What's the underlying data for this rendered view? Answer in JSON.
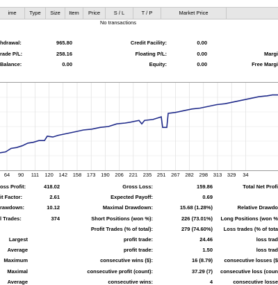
{
  "header": {
    "columns": [
      "ime",
      "Type",
      "Size",
      "Item",
      "Price",
      "S / L",
      "T / P",
      "Market Price"
    ]
  },
  "transactions": {
    "empty_text": "No transactions"
  },
  "summary_top": [
    {
      "label": "hdrawal:",
      "value": "965.80",
      "label2": "Credit Facility:",
      "value2": "0.00",
      "label3": ""
    },
    {
      "label": "rade P/L:",
      "value": "258.16",
      "label2": "Floating P/L:",
      "value2": "0.00",
      "label3": "Margi"
    },
    {
      "label": "Balance:",
      "value": "0.00",
      "label2": "Equity:",
      "value2": "0.00",
      "label3": "Free Margi"
    }
  ],
  "chart_data": {
    "type": "line",
    "x_ticks": [
      "64",
      "90",
      "111",
      "120",
      "142",
      "158",
      "173",
      "190",
      "206",
      "221",
      "235",
      "251",
      "267",
      "282",
      "298",
      "313",
      "329",
      "34"
    ],
    "series": [
      {
        "values": [
          [
            0,
            6.0
          ],
          [
            0.02,
            6.1
          ],
          [
            0.04,
            6.5
          ],
          [
            0.06,
            6.6
          ],
          [
            0.08,
            6.8
          ],
          [
            0.1,
            7.1
          ],
          [
            0.12,
            7.2
          ],
          [
            0.14,
            7.4
          ],
          [
            0.16,
            7.4
          ],
          [
            0.17,
            7.9
          ],
          [
            0.19,
            7.8
          ],
          [
            0.21,
            8.0
          ],
          [
            0.24,
            8.2
          ],
          [
            0.27,
            8.4
          ],
          [
            0.3,
            8.6
          ],
          [
            0.33,
            8.7
          ],
          [
            0.36,
            8.9
          ],
          [
            0.39,
            9.0
          ],
          [
            0.42,
            9.3
          ],
          [
            0.45,
            9.4
          ],
          [
            0.47,
            9.5
          ],
          [
            0.5,
            9.7
          ],
          [
            0.51,
            9.3
          ],
          [
            0.52,
            9.7
          ],
          [
            0.55,
            9.8
          ],
          [
            0.57,
            10.0
          ],
          [
            0.58,
            10.1
          ],
          [
            0.585,
            8.9
          ],
          [
            0.6,
            8.9
          ],
          [
            0.605,
            10.5
          ],
          [
            0.63,
            10.6
          ],
          [
            0.66,
            10.8
          ],
          [
            0.69,
            11.0
          ],
          [
            0.72,
            11.1
          ],
          [
            0.75,
            11.3
          ],
          [
            0.78,
            11.5
          ],
          [
            0.81,
            11.6
          ],
          [
            0.84,
            11.8
          ],
          [
            0.87,
            12.0
          ],
          [
            0.9,
            12.2
          ],
          [
            0.93,
            12.4
          ],
          [
            0.96,
            12.5
          ],
          [
            0.98,
            12.6
          ],
          [
            1.0,
            12.6
          ]
        ]
      }
    ],
    "color": "#1f2a8a"
  },
  "stats": [
    {
      "c1l": "oss Profit:",
      "c1v": "418.02",
      "c2l": "Gross Loss:",
      "c2v": "159.86",
      "c3l": "Total Net Profi"
    },
    {
      "c1l": "it Factor:",
      "c1v": "2.61",
      "c2l": "Expected Payoff:",
      "c2v": "0.69",
      "c3l": ""
    },
    {
      "c1l": "rawdown:",
      "c1v": "10.12",
      "c2l": "Maximal Drawdown:",
      "c2v": "15.68 (1.28%)",
      "c3l": "Relative Drawdo"
    },
    {
      "c1l": "l Trades:",
      "c1v": "374",
      "c2l": "Short Positions (won %):",
      "c2v": "226 (73.01%)",
      "c3l": "Long Positions (won %"
    },
    {
      "c1l": "",
      "c1v": "",
      "c2l": "Profit Trades (% of total):",
      "c2v": "279 (74.60%)",
      "c3l": "Loss trades (% of tota"
    },
    {
      "c1l": "Largest",
      "c1v": "",
      "c2l": "profit trade:",
      "c2v": "24.46",
      "c3l": "loss trad"
    },
    {
      "c1l": "Average",
      "c1v": "",
      "c2l": "profit trade:",
      "c2v": "1.50",
      "c3l": "loss trad"
    },
    {
      "c1l": "Maximum",
      "c1v": "",
      "c2l": "consecutive wins ($):",
      "c2v": "16 (8.79)",
      "c3l": "consecutive losses ($"
    },
    {
      "c1l": "Maximal",
      "c1v": "",
      "c2l": "consecutive profit (count):",
      "c2v": "37.29 (7)",
      "c3l": "consecutive loss (coun"
    },
    {
      "c1l": "Average",
      "c1v": "",
      "c2l": "consecutive wins:",
      "c2v": "4",
      "c3l": "consecutive losse"
    }
  ]
}
